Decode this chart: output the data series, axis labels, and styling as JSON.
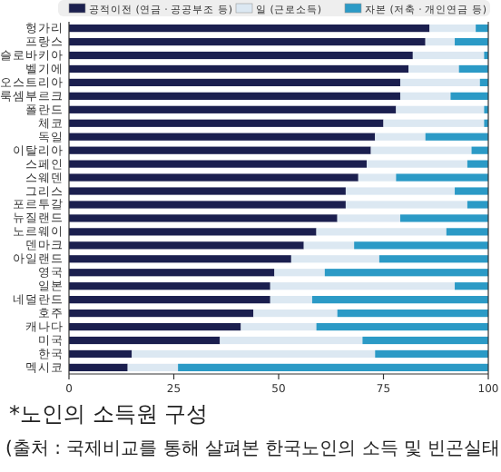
{
  "chart_data": {
    "type": "bar",
    "orientation": "horizontal",
    "stacked": true,
    "categories": [
      "헝가리",
      "프랑스",
      "슬로바키아",
      "벨기에",
      "오스트리아",
      "룩셈부르크",
      "폴란드",
      "체코",
      "독일",
      "이탈리아",
      "스페인",
      "스웨덴",
      "그리스",
      "포르투갈",
      "뉴질랜드",
      "노르웨이",
      "덴마크",
      "아일랜드",
      "영국",
      "일본",
      "네덜란드",
      "호주",
      "캐나다",
      "미국",
      "한국",
      "멕시코"
    ],
    "series": [
      {
        "name": "공적이전 (연금 · 공공부조 등)",
        "color": "#1b1f4f",
        "values": [
          86,
          85,
          82,
          81,
          79,
          79,
          78,
          75,
          73,
          72,
          71,
          69,
          66,
          66,
          64,
          59,
          56,
          53,
          49,
          48,
          48,
          44,
          41,
          36,
          15,
          14
        ]
      },
      {
        "name": "일 (근로소득)",
        "color": "#dce8f2",
        "values": [
          11,
          7,
          17,
          12,
          19,
          12,
          21,
          24,
          12,
          24,
          24,
          9,
          26,
          29,
          15,
          31,
          12,
          21,
          12,
          44,
          10,
          20,
          18,
          34,
          58,
          12
        ]
      },
      {
        "name": "자본 (저축 · 개인연금 등)",
        "color": "#2b9ac6",
        "values": [
          3,
          8,
          1,
          7,
          2,
          9,
          1,
          1,
          15,
          4,
          5,
          22,
          8,
          5,
          21,
          10,
          32,
          26,
          39,
          8,
          42,
          36,
          41,
          30,
          27,
          74
        ]
      }
    ],
    "xlim": [
      0,
      100
    ],
    "xticks": [
      0,
      25,
      50,
      75,
      100
    ],
    "legend": "top",
    "annotations": [
      "*노인의 소득원 구성",
      "(출처 : 국제비교를 통해 살펴본 한국노인의 소득 및 빈곤실태"
    ]
  }
}
